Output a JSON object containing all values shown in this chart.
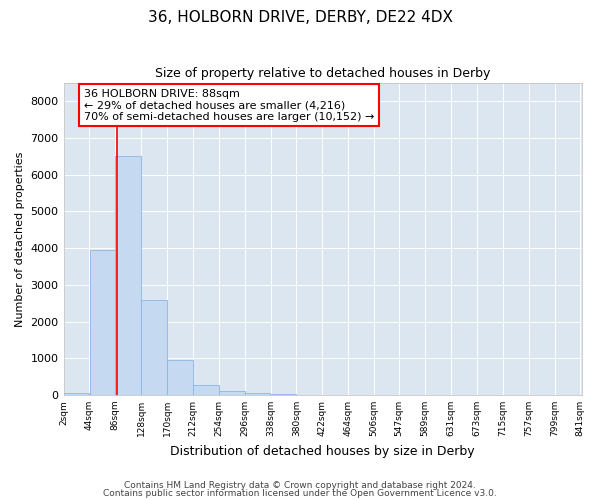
{
  "title1": "36, HOLBORN DRIVE, DERBY, DE22 4DX",
  "title2": "Size of property relative to detached houses in Derby",
  "xlabel": "Distribution of detached houses by size in Derby",
  "ylabel": "Number of detached properties",
  "bar_color": "#c5d9f1",
  "bar_edge_color": "#8db4e2",
  "background_color": "#dce6f1",
  "annotation_lines": [
    "36 HOLBORN DRIVE: 88sqm",
    "← 29% of detached houses are smaller (4,216)",
    "70% of semi-detached houses are larger (10,152) →"
  ],
  "property_line_x": 88,
  "bin_width": 42,
  "bin_starts": [
    2,
    44,
    86,
    128,
    170,
    212,
    254,
    296,
    338,
    380,
    422,
    464,
    506,
    547,
    589,
    631,
    673,
    715,
    757,
    799
  ],
  "bar_heights": [
    50,
    3950,
    6500,
    2600,
    950,
    280,
    120,
    55,
    22,
    10,
    5,
    2,
    1,
    0,
    0,
    0,
    0,
    0,
    0,
    0
  ],
  "tick_labels": [
    "2sqm",
    "44sqm",
    "86sqm",
    "128sqm",
    "170sqm",
    "212sqm",
    "254sqm",
    "296sqm",
    "338sqm",
    "380sqm",
    "422sqm",
    "464sqm",
    "506sqm",
    "547sqm",
    "589sqm",
    "631sqm",
    "673sqm",
    "715sqm",
    "757sqm",
    "799sqm",
    "841sqm"
  ],
  "yticks": [
    0,
    1000,
    2000,
    3000,
    4000,
    5000,
    6000,
    7000,
    8000
  ],
  "ylim": [
    0,
    8500
  ],
  "xlim_left": 2,
  "xlim_right": 843,
  "footer1": "Contains HM Land Registry data © Crown copyright and database right 2024.",
  "footer2": "Contains public sector information licensed under the Open Government Licence v3.0."
}
